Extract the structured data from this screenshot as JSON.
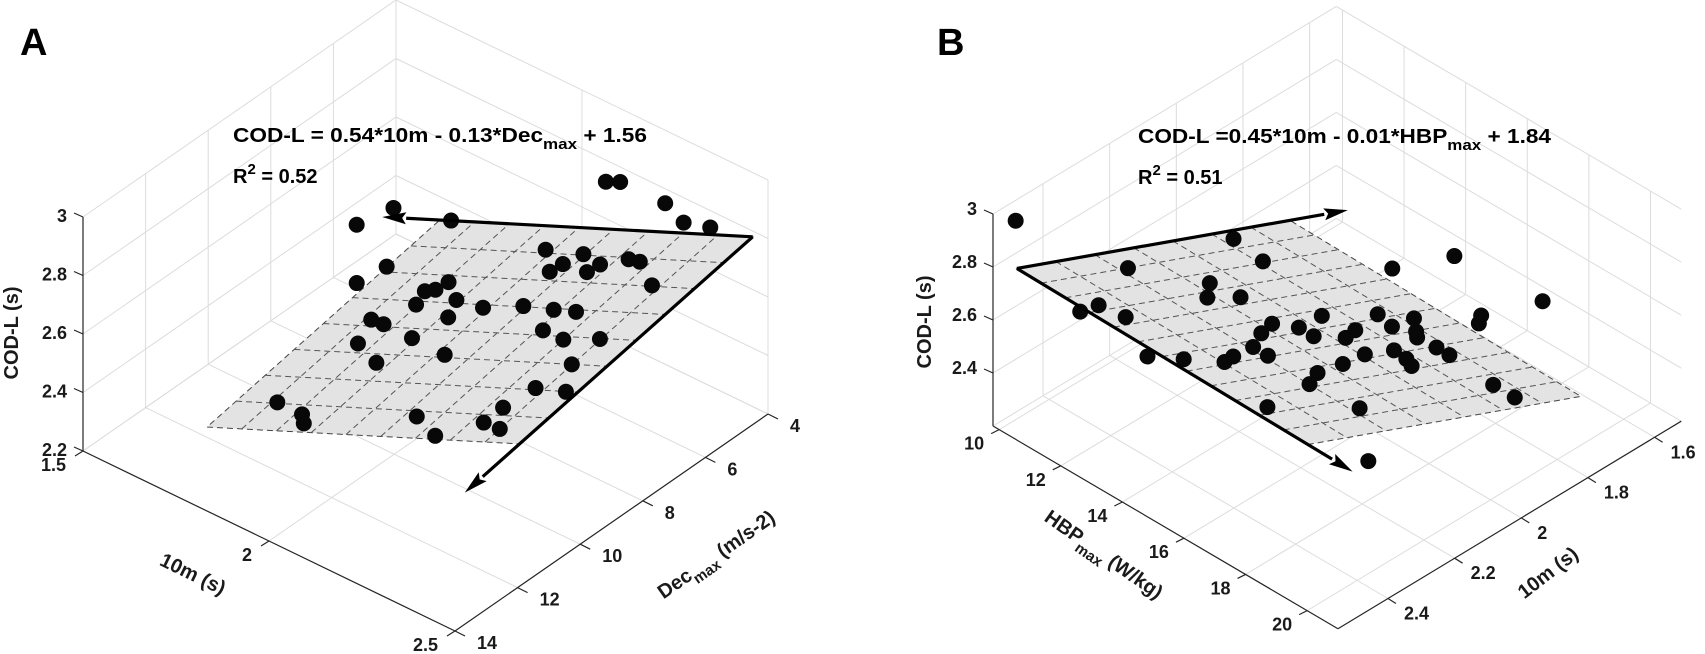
{
  "chart_data": [
    {
      "panel": "A",
      "type": "scatter3d",
      "equation": {
        "pre": "COD-L = 0.54*10m - 0.13*Dec",
        "sub": "max",
        "post": " + 1.56"
      },
      "r2": {
        "pre": "R",
        "sup": "2",
        "post": " = 0.52"
      },
      "point_fields": [
        "10m (s)",
        "Dec_max (m/s-2)",
        "COD-L (s)"
      ],
      "axes": {
        "x": {
          "label": "10m (s)",
          "range": [
            1.5,
            2.5
          ],
          "ticks": [
            1.5,
            2,
            2.5
          ],
          "tick_labels": [
            "1.5",
            "2",
            "2.5"
          ]
        },
        "y": {
          "label_pre": "Dec",
          "label_sub": "max",
          "label_post": " (m/s-2)",
          "range": [
            4,
            14
          ],
          "ticks": [
            4,
            6,
            8,
            10,
            12,
            14
          ],
          "tick_labels": [
            "4",
            "6",
            "8",
            "10",
            "12",
            "14"
          ]
        },
        "z": {
          "label": "COD-L (s)",
          "range": [
            2.2,
            3
          ],
          "ticks": [
            2.2,
            2.4,
            2.6,
            2.8,
            3
          ],
          "tick_labels": [
            "2.2",
            "2.4",
            "2.6",
            "2.8",
            "3"
          ]
        }
      },
      "grid": true,
      "points": [
        [
          1.51,
          4.2,
          2.31
        ],
        [
          1.47,
          4.9,
          2.28
        ],
        [
          1.69,
          4.5,
          2.4
        ],
        [
          1.98,
          3.0,
          2.6
        ],
        [
          2.01,
          2.9,
          2.61
        ],
        [
          2.19,
          3.6,
          2.7
        ],
        [
          2.29,
          4.2,
          2.74
        ],
        [
          2.37,
          4.3,
          2.78
        ],
        [
          1.66,
          6.2,
          2.35
        ],
        [
          1.63,
          6.8,
          2.32
        ],
        [
          2.02,
          5.4,
          2.57
        ],
        [
          2.1,
          5.8,
          2.6
        ],
        [
          2.09,
          6.1,
          2.59
        ],
        [
          2.13,
          5.5,
          2.63
        ],
        [
          2.19,
          6.1,
          2.65
        ],
        [
          2.2,
          5.8,
          2.66
        ],
        [
          2.26,
          5.6,
          2.7
        ],
        [
          2.29,
          5.6,
          2.71
        ],
        [
          2.39,
          6.4,
          2.75
        ],
        [
          1.86,
          6.6,
          2.45
        ],
        [
          1.83,
          7.0,
          2.43
        ],
        [
          1.85,
          6.9,
          2.44
        ],
        [
          1.84,
          7.4,
          2.42
        ],
        [
          1.94,
          7.3,
          2.49
        ],
        [
          1.96,
          7.8,
          2.48
        ],
        [
          2.02,
          7.4,
          2.52
        ],
        [
          2.12,
          7.3,
          2.58
        ],
        [
          2.21,
          7.4,
          2.63
        ],
        [
          2.27,
          7.4,
          2.66
        ],
        [
          1.77,
          8.0,
          2.37
        ],
        [
          1.82,
          8.2,
          2.4
        ],
        [
          1.81,
          8.9,
          2.38
        ],
        [
          1.93,
          8.6,
          2.45
        ],
        [
          2.24,
          8.1,
          2.63
        ],
        [
          2.32,
          8.4,
          2.67
        ],
        [
          2.41,
          8.3,
          2.72
        ],
        [
          2.06,
          9.1,
          2.51
        ],
        [
          1.91,
          9.5,
          2.42
        ],
        [
          2.41,
          9.2,
          2.7
        ],
        [
          2.38,
          10.0,
          2.66
        ],
        [
          2.47,
          10.1,
          2.71
        ],
        [
          1.77,
          11.0,
          2.31
        ],
        [
          2.36,
          10.8,
          2.64
        ],
        [
          1.87,
          11.4,
          2.36
        ],
        [
          1.9,
          11.7,
          2.37
        ],
        [
          2.17,
          11.3,
          2.53
        ],
        [
          2.35,
          11.3,
          2.62
        ],
        [
          2.41,
          11.5,
          2.65
        ],
        [
          2.27,
          11.9,
          2.57
        ]
      ],
      "plane": {
        "corners": [
          [
            1.665,
            12,
            2.235
          ],
          [
            2.506,
            12,
            2.695
          ],
          [
            2.506,
            4.56,
            2.851
          ],
          [
            1.665,
            4.56,
            2.391
          ]
        ],
        "divisions": [
          9,
          8
        ]
      },
      "arrows": [
        {
          "from": [
            2.506,
            4.56,
            2.851
          ],
          "to": [
            1.51,
            4.56,
            2.306
          ]
        },
        {
          "from": [
            2.506,
            4.56,
            2.851
          ],
          "to": [
            2.506,
            13.76,
            2.659
          ]
        }
      ]
    },
    {
      "panel": "B",
      "type": "scatter3d",
      "equation": {
        "pre": "COD-L =0.45*10m - 0.01*HBP",
        "sub": "max",
        "post": " + 1.84"
      },
      "r2": {
        "pre": "R",
        "sup": "2",
        "post": " = 0.51"
      },
      "point_fields": [
        "10m (s)",
        "HBP_max (W/kg)",
        "COD-L (s)"
      ],
      "axes": {
        "x": {
          "label": "10m (s)",
          "range": [
            1.52,
            2.55
          ],
          "ticks": [
            1.6,
            1.8,
            2,
            2.2,
            2.4
          ],
          "tick_labels": [
            "1.6",
            "1.8",
            "2",
            "2.2",
            "2.4"
          ]
        },
        "y": {
          "label_pre": "HBP",
          "label_sub": "max",
          "label_post": " (W/kg)",
          "range": [
            9.8,
            21
          ],
          "ticks": [
            10,
            12,
            14,
            16,
            18,
            20
          ],
          "tick_labels": [
            "10",
            "12",
            "14",
            "16",
            "18",
            "20"
          ]
        },
        "z": {
          "label": "COD-L (s)",
          "range": [
            2.2,
            3
          ],
          "ticks": [
            2.4,
            2.6,
            2.8,
            3
          ],
          "tick_labels": [
            "2.4",
            "2.6",
            "2.8",
            "3"
          ]
        }
      },
      "grid": true,
      "points": [
        [
          2.36,
          8.48,
          2.74
        ],
        [
          2.28,
          11.26,
          2.69
        ],
        [
          1.93,
          10.9,
          2.51
        ],
        [
          1.95,
          12.07,
          2.52
        ],
        [
          2.15,
          12.51,
          2.62
        ],
        [
          2.21,
          13.08,
          2.65
        ],
        [
          2.14,
          13.4,
          2.62
        ],
        [
          2.49,
          12.58,
          2.8
        ],
        [
          2.56,
          12.74,
          2.84
        ],
        [
          2.48,
          13.35,
          2.8
        ],
        [
          2.16,
          14.64,
          2.62
        ],
        [
          2.22,
          14.94,
          2.65
        ],
        [
          2.11,
          14.97,
          2.59
        ],
        [
          2.3,
          15.54,
          2.7
        ],
        [
          2.3,
          16.02,
          2.7
        ],
        [
          2.58,
          15.14,
          2.85
        ],
        [
          2.5,
          15.45,
          2.8
        ],
        [
          2.42,
          15.91,
          2.76
        ],
        [
          2.38,
          15.76,
          2.74
        ],
        [
          2.49,
          18.06,
          2.79
        ],
        [
          2.31,
          17.48,
          2.7
        ],
        [
          1.67,
          13.24,
          2.36
        ],
        [
          1.48,
          13.2,
          2.26
        ],
        [
          1.45,
          15.74,
          2.24
        ],
        [
          1.65,
          15.91,
          2.35
        ],
        [
          1.68,
          16.16,
          2.36
        ],
        [
          2.02,
          14.74,
          2.55
        ],
        [
          2.11,
          15.45,
          2.59
        ],
        [
          1.88,
          15.04,
          2.47
        ],
        [
          1.89,
          15.61,
          2.47
        ],
        [
          1.81,
          15.46,
          2.43
        ],
        [
          1.86,
          16.07,
          2.46
        ],
        [
          1.88,
          16.32,
          2.47
        ],
        [
          2.0,
          15.61,
          2.54
        ],
        [
          2.04,
          15.73,
          2.55
        ],
        [
          2.06,
          16.57,
          2.56
        ],
        [
          1.98,
          16.65,
          2.52
        ],
        [
          1.99,
          17.16,
          2.53
        ],
        [
          2.0,
          17.44,
          2.53
        ],
        [
          1.87,
          16.84,
          2.46
        ],
        [
          1.87,
          17.26,
          2.46
        ],
        [
          2.15,
          16.83,
          2.61
        ],
        [
          2.25,
          17.09,
          2.67
        ],
        [
          1.88,
          18.79,
          2.46
        ],
        [
          1.88,
          19.49,
          2.46
        ],
        [
          2.29,
          18.89,
          2.69
        ],
        [
          2.47,
          21.12,
          2.78
        ]
      ],
      "plane": {
        "corners": [
          [
            2.543,
            10.5,
            2.837
          ],
          [
            2.543,
            19.95,
            2.818
          ],
          [
            1.724,
            19.95,
            2.377
          ],
          [
            1.724,
            10.5,
            2.396
          ]
        ],
        "divisions": [
          12,
          7
        ]
      },
      "arrows": [
        {
          "from": [
            2.543,
            10.5,
            2.837
          ],
          "to": [
            1.55,
            10.5,
            2.302
          ]
        },
        {
          "from": [
            2.543,
            10.5,
            2.837
          ],
          "to": [
            2.543,
            21.4,
            2.815
          ]
        }
      ]
    }
  ]
}
